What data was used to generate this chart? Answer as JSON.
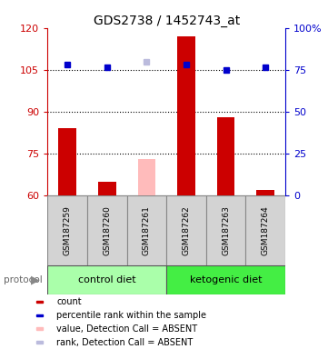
{
  "title": "GDS2738 / 1452743_at",
  "samples": [
    "GSM187259",
    "GSM187260",
    "GSM187261",
    "GSM187262",
    "GSM187263",
    "GSM187264"
  ],
  "bar_values": [
    84,
    65,
    null,
    117,
    88,
    62
  ],
  "absent_bar_values": [
    null,
    null,
    73,
    null,
    null,
    null
  ],
  "blue_square_values": [
    107,
    106,
    null,
    107,
    105,
    106
  ],
  "absent_blue_values": [
    null,
    null,
    108,
    null,
    null,
    null
  ],
  "bar_color": "#cc0000",
  "absent_bar_color": "#ffbbbb",
  "blue_color": "#0000cc",
  "absent_blue_color": "#bbbbdd",
  "ylim_left": [
    60,
    120
  ],
  "ylim_right": [
    0,
    100
  ],
  "yticks_left": [
    60,
    75,
    90,
    105,
    120
  ],
  "yticks_right": [
    0,
    25,
    50,
    75,
    100
  ],
  "ytick_labels_right": [
    "0",
    "25",
    "50",
    "75",
    "100%"
  ],
  "grid_values": [
    75,
    90,
    105
  ],
  "protocol_groups": [
    {
      "label": "control diet",
      "samples": [
        0,
        1,
        2
      ],
      "color": "#aaffaa"
    },
    {
      "label": "ketogenic diet",
      "samples": [
        3,
        4,
        5
      ],
      "color": "#44ee44"
    }
  ],
  "protocol_label": "protocol",
  "legend_items": [
    {
      "label": "count",
      "color": "#cc0000"
    },
    {
      "label": "percentile rank within the sample",
      "color": "#0000cc"
    },
    {
      "label": "value, Detection Call = ABSENT",
      "color": "#ffbbbb"
    },
    {
      "label": "rank, Detection Call = ABSENT",
      "color": "#bbbbdd"
    }
  ],
  "bar_width": 0.45,
  "square_size": 5
}
